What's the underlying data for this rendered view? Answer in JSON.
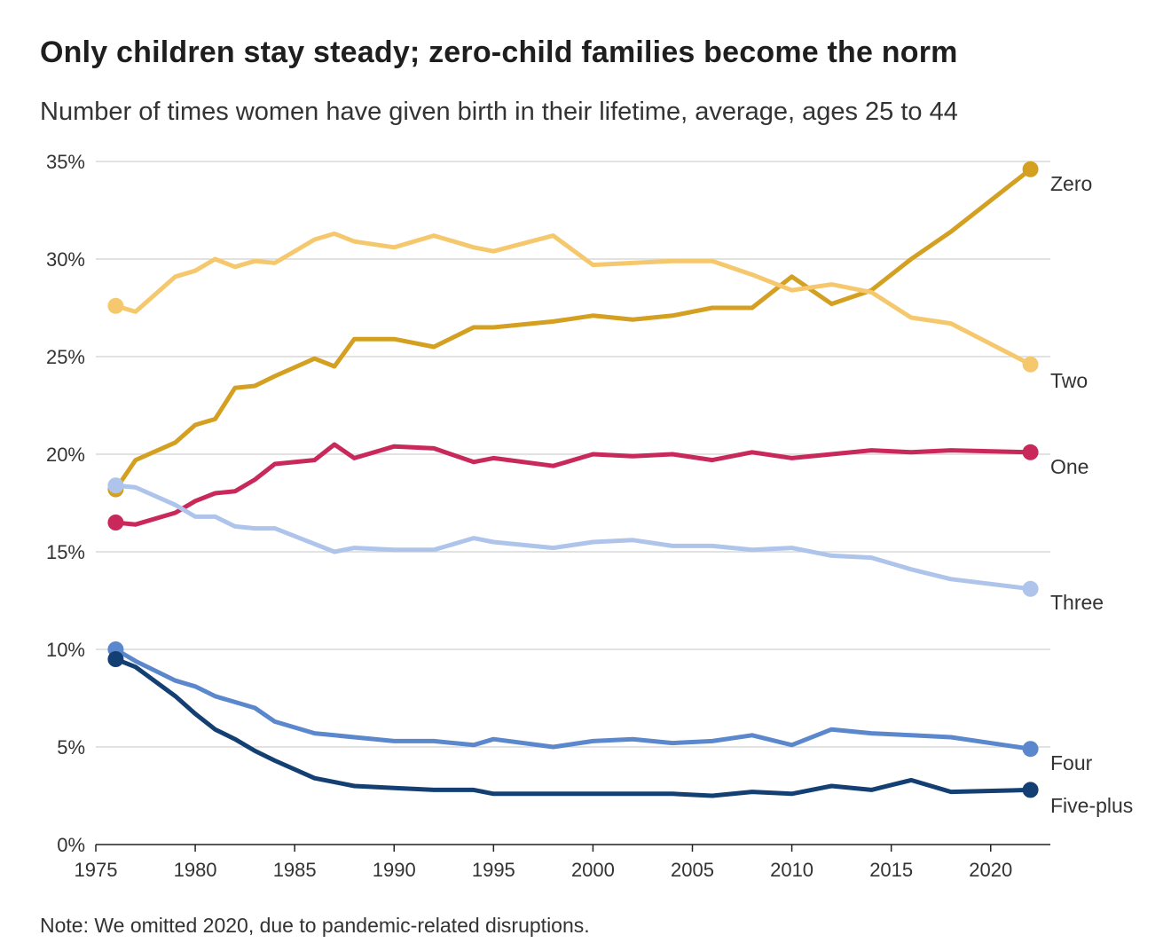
{
  "title": "Only children stay steady; zero-child families become the norm",
  "subtitle": "Number of times women have given birth in their lifetime, average, ages 25 to 44",
  "note": "Note: We omitted 2020, due to pandemic-related disruptions.",
  "chart_data": {
    "type": "line",
    "title": "Only children stay steady; zero-child families become the norm",
    "subtitle": "Number of times women have given birth in their lifetime, average, ages 25 to 44",
    "xlim": [
      1975,
      2023
    ],
    "ylim": [
      0,
      35
    ],
    "x_ticks": [
      1975,
      1980,
      1985,
      1990,
      1995,
      2000,
      2005,
      2010,
      2015,
      2020
    ],
    "y_ticks": [
      0,
      5,
      10,
      15,
      20,
      25,
      30,
      35
    ],
    "y_tick_labels": [
      "0%",
      "5%",
      "10%",
      "15%",
      "20%",
      "25%",
      "30%",
      "35%"
    ],
    "grid": "horizontal",
    "legend": "direct labels at right end of lines",
    "x": [
      1976,
      1977,
      1979,
      1980,
      1981,
      1982,
      1983,
      1984,
      1986,
      1987,
      1988,
      1990,
      1992,
      1994,
      1995,
      1998,
      2000,
      2002,
      2004,
      2006,
      2008,
      2010,
      2012,
      2014,
      2016,
      2018,
      2022
    ],
    "series": [
      {
        "name": "Zero",
        "color": "#d4a022",
        "values": [
          18.2,
          19.7,
          20.6,
          21.5,
          21.8,
          23.4,
          23.5,
          24.0,
          24.9,
          24.5,
          25.9,
          25.9,
          25.5,
          26.5,
          26.5,
          26.8,
          27.1,
          26.9,
          27.1,
          27.5,
          27.5,
          29.1,
          27.7,
          28.4,
          30.0,
          31.4,
          34.6
        ]
      },
      {
        "name": "Two",
        "color": "#f5c86e",
        "values": [
          27.6,
          27.3,
          29.1,
          29.4,
          30.0,
          29.6,
          29.9,
          29.8,
          31.0,
          31.3,
          30.9,
          30.6,
          31.2,
          30.6,
          30.4,
          31.2,
          29.7,
          29.8,
          29.9,
          29.9,
          29.2,
          28.4,
          28.7,
          28.3,
          27.0,
          26.7,
          24.6
        ]
      },
      {
        "name": "One",
        "color": "#c8285a",
        "values": [
          16.5,
          16.4,
          17.0,
          17.6,
          18.0,
          18.1,
          18.7,
          19.5,
          19.7,
          20.5,
          19.8,
          20.4,
          20.3,
          19.6,
          19.8,
          19.4,
          20.0,
          19.9,
          20.0,
          19.7,
          20.1,
          19.8,
          20.0,
          20.2,
          20.1,
          20.2,
          20.1
        ]
      },
      {
        "name": "Three",
        "color": "#aec4ea",
        "values": [
          18.4,
          18.3,
          17.4,
          16.8,
          16.8,
          16.3,
          16.2,
          16.2,
          15.4,
          15.0,
          15.2,
          15.1,
          15.1,
          15.7,
          15.5,
          15.2,
          15.5,
          15.6,
          15.3,
          15.3,
          15.1,
          15.2,
          14.8,
          14.7,
          14.1,
          13.6,
          13.1
        ]
      },
      {
        "name": "Four",
        "color": "#5b87cc",
        "values": [
          10.0,
          9.4,
          8.4,
          8.1,
          7.6,
          7.3,
          7.0,
          6.3,
          5.7,
          5.6,
          5.5,
          5.3,
          5.3,
          5.1,
          5.4,
          5.0,
          5.3,
          5.4,
          5.2,
          5.3,
          5.6,
          5.1,
          5.9,
          5.7,
          5.6,
          5.5,
          4.9
        ]
      },
      {
        "name": "Five-plus",
        "color": "#133f73",
        "values": [
          9.5,
          9.1,
          7.6,
          6.7,
          5.9,
          5.4,
          4.8,
          4.3,
          3.4,
          3.2,
          3.0,
          2.9,
          2.8,
          2.8,
          2.6,
          2.6,
          2.6,
          2.6,
          2.6,
          2.5,
          2.7,
          2.6,
          3.0,
          2.8,
          3.3,
          2.7,
          2.8
        ]
      }
    ]
  }
}
